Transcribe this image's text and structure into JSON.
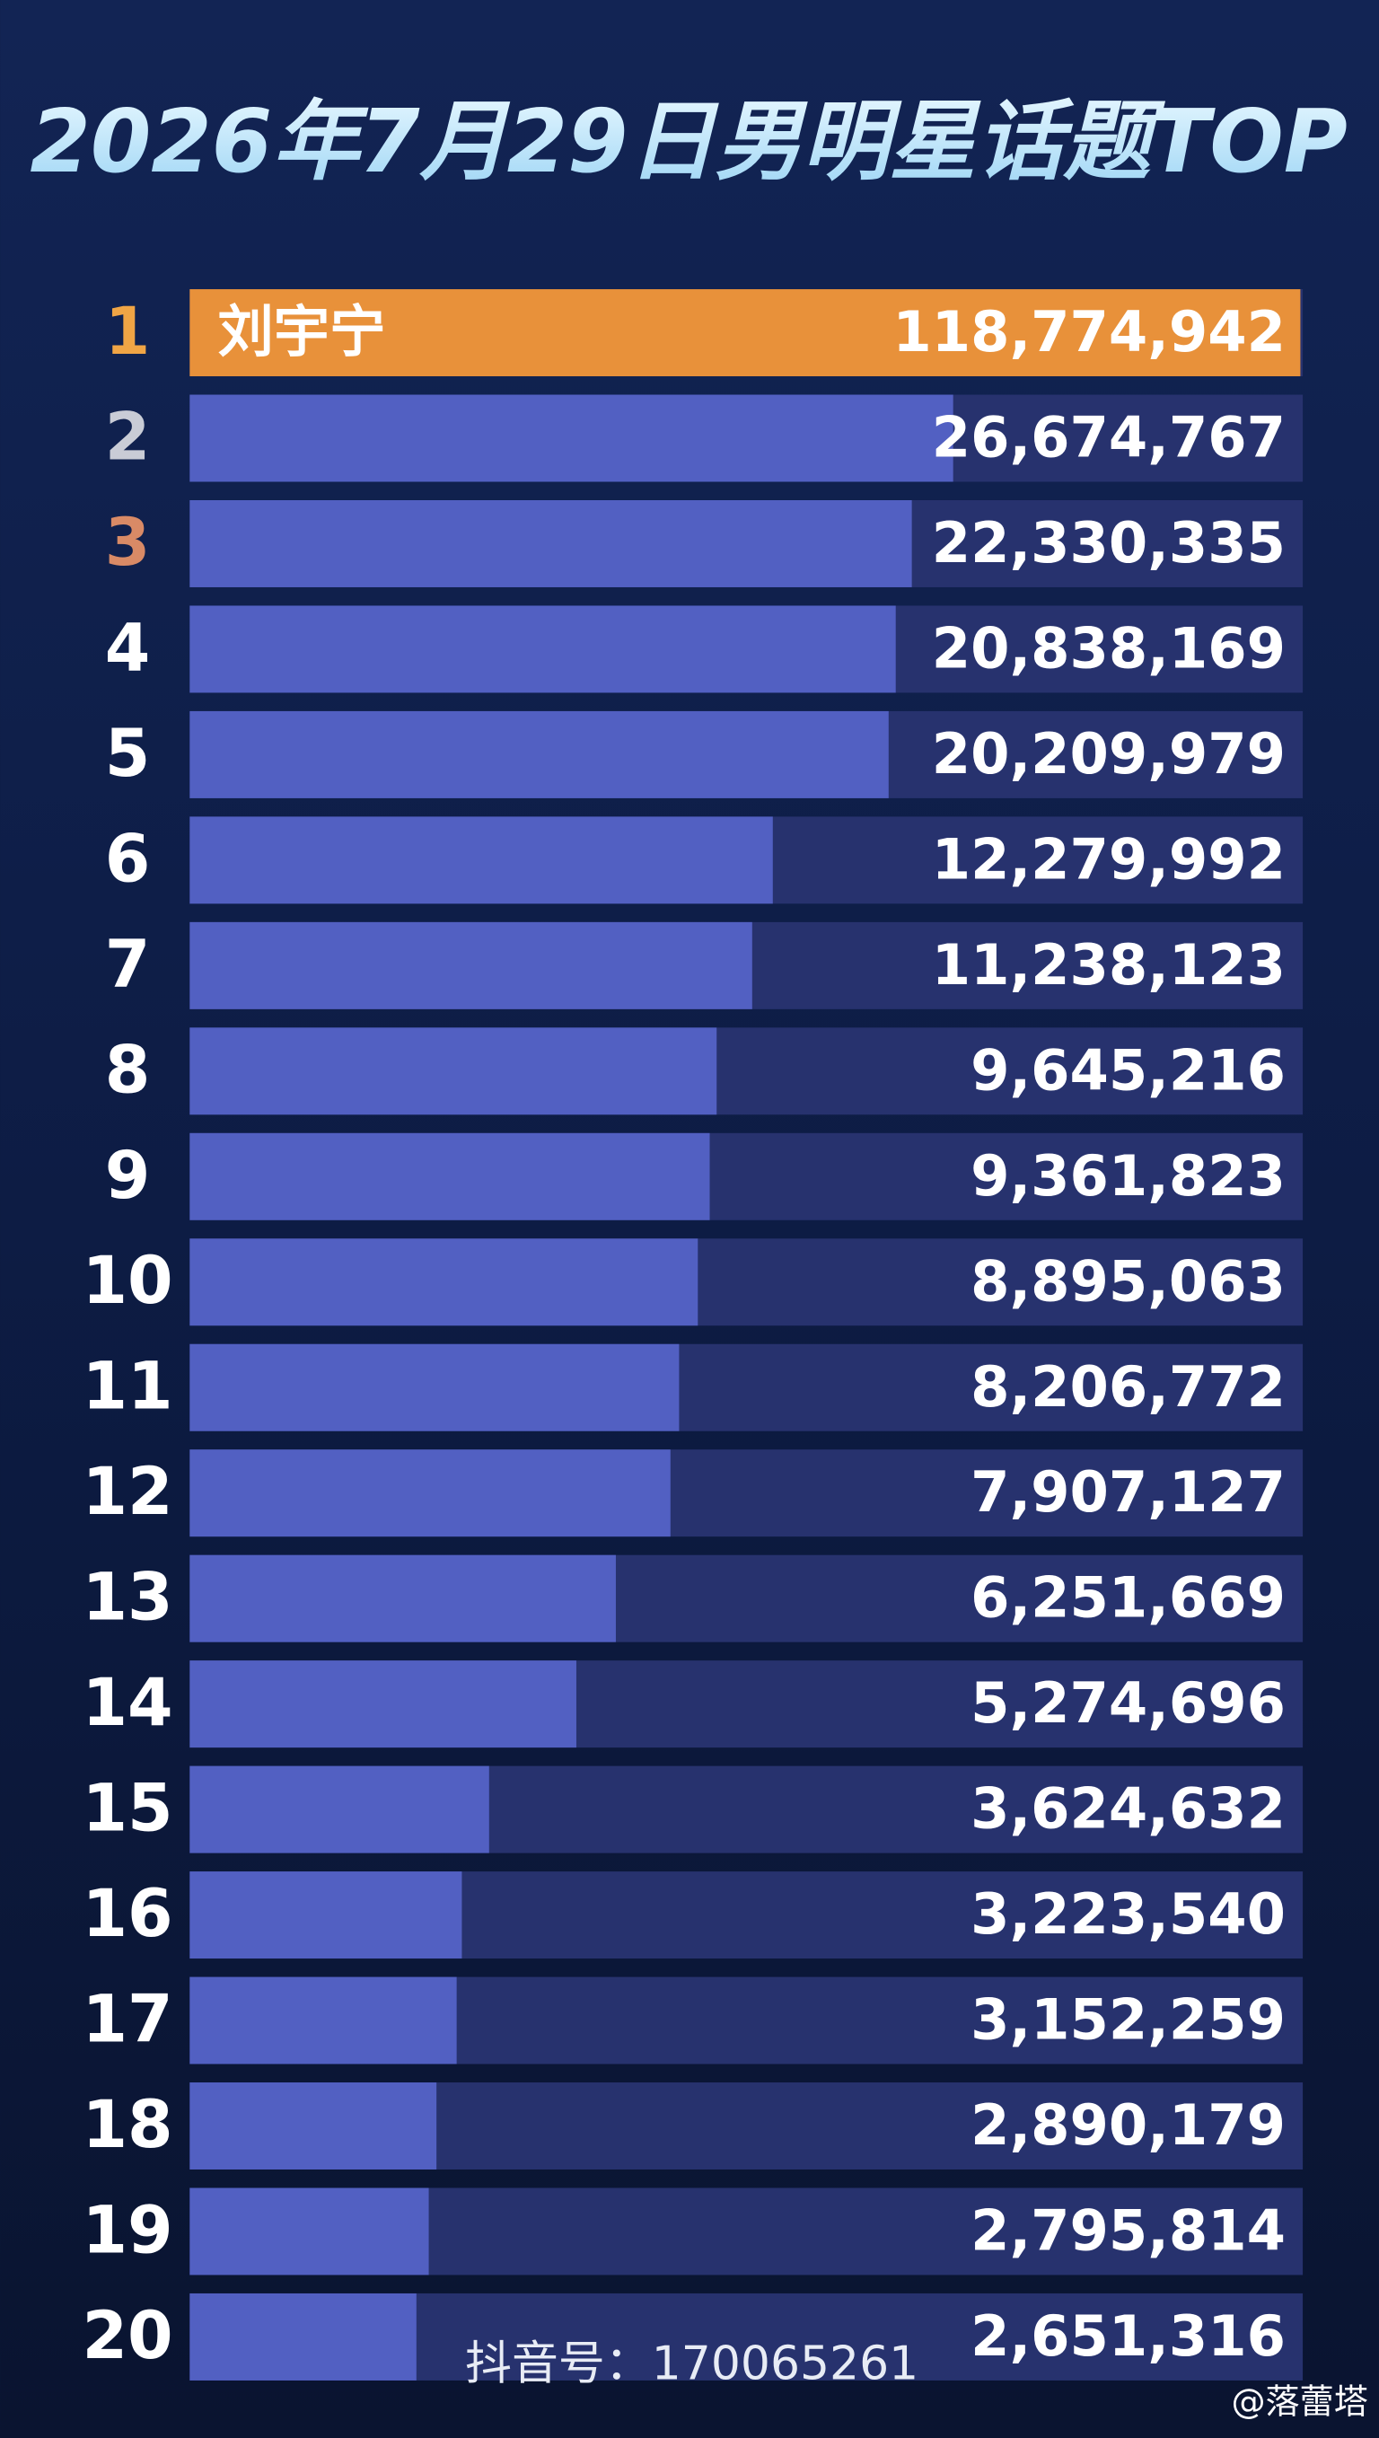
{
  "chart_data": {
    "type": "bar",
    "orientation": "horizontal",
    "title": "2026年7月29日男明星话题TOP",
    "ranks": [
      1,
      2,
      3,
      4,
      5,
      6,
      7,
      8,
      9,
      10,
      11,
      12,
      13,
      14,
      15,
      16,
      17,
      18,
      19,
      20
    ],
    "rank_colors": [
      "#f0a545",
      "#c9ccd6",
      "#d98a66",
      "#ffffff"
    ],
    "categories": [
      "刘宇宁",
      null,
      null,
      null,
      null,
      null,
      null,
      null,
      null,
      null,
      null,
      null,
      null,
      null,
      null,
      null,
      null,
      null,
      null,
      null
    ],
    "values": [
      118774942,
      26674767,
      22330335,
      20838169,
      20209979,
      12279992,
      11238123,
      9645216,
      9361823,
      8895063,
      8206772,
      7907127,
      6251669,
      5274696,
      3624632,
      3223540,
      3152259,
      2890179,
      2795814,
      2651316
    ],
    "value_labels": [
      "118,774,942",
      "26,674,767",
      "22,330,335",
      "20,838,169",
      "20,209,979",
      "12,279,992",
      "11,238,123",
      "9,645,216",
      "9,361,823",
      "8,895,063",
      "8,206,772",
      "7,907,127",
      "6,251,669",
      "5,274,696",
      "3,624,632",
      "3,223,540",
      "3,152,259",
      "2,890,179",
      "2,795,814",
      "2,651,316"
    ],
    "highlight_color": "#e8913a",
    "color": "#5260c2",
    "track_color": "#27326e",
    "log_scale": true,
    "xlim": [
      1000000,
      120000000
    ],
    "annotations": [
      "抖音号：170065261",
      "@落蕾塔"
    ]
  }
}
